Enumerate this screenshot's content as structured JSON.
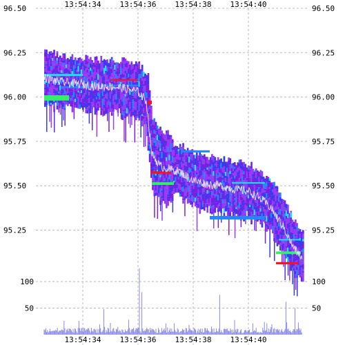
{
  "chart_data": {
    "type": "heatmap",
    "title": "",
    "xlabel": "",
    "ylabel": "",
    "x_ticks": [
      "13:54:34",
      "13:54:36",
      "13:54:38",
      "13:54:40"
    ],
    "x_tick_times_s": [
      34,
      36,
      38,
      40
    ],
    "xlim_s": [
      32.3,
      42.2
    ],
    "price_panel": {
      "y_ticks": [
        "96.50",
        "96.25",
        "96.00",
        "95.75",
        "95.50",
        "95.25"
      ],
      "y_tick_values": [
        96.5,
        96.25,
        96.0,
        95.75,
        95.5,
        95.25
      ],
      "ylim": [
        95.05,
        96.5
      ],
      "depth_colors": [
        "#7a1fe0",
        "#5a2cf0",
        "#3a3ae8",
        "#8844ee",
        "#9f33ff",
        "#2288ff",
        "#22ddee",
        "#33ee66",
        "#ff1111"
      ],
      "trade_line_color": "#e8e8ff",
      "series": [
        {
          "name": "",
          "t_s": [
            32.6,
            33.0,
            33.5,
            34.0,
            34.5,
            35.0,
            35.5,
            36.0,
            36.3,
            36.5,
            36.8,
            37.0,
            37.5,
            38.0,
            38.5,
            39.0,
            39.5,
            40.0,
            40.5,
            40.8,
            41.0,
            41.3,
            41.6,
            41.9
          ],
          "price": [
            96.13,
            96.11,
            96.1,
            96.09,
            96.08,
            96.08,
            96.07,
            96.05,
            96.0,
            95.7,
            95.63,
            95.62,
            95.6,
            95.55,
            95.53,
            95.52,
            95.5,
            95.49,
            95.44,
            95.4,
            95.35,
            95.28,
            95.18,
            95.12
          ]
        }
      ]
    },
    "volume_panel": {
      "y_ticks": [
        "100",
        "50"
      ],
      "y_tick_values": [
        100,
        50
      ],
      "ylim": [
        0,
        130
      ],
      "bar_color": "#8888ee",
      "peaks": [
        {
          "t_s": 36.05,
          "value": 125
        },
        {
          "t_s": 36.15,
          "value": 80
        },
        {
          "t_s": 38.95,
          "value": 75
        },
        {
          "t_s": 34.75,
          "value": 48
        },
        {
          "t_s": 41.35,
          "value": 62
        },
        {
          "t_s": 41.7,
          "value": 50
        }
      ]
    }
  }
}
